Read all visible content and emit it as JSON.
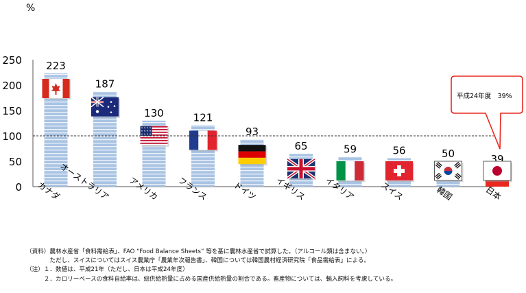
{
  "chart_data": {
    "type": "bar",
    "ylabel": "%",
    "ylim": [
      0,
      250
    ],
    "yticks": [
      0,
      50,
      100,
      150,
      200,
      250
    ],
    "reference_line": 100,
    "categories": [
      "カナダ",
      "オーストラリア",
      "アメリカ",
      "フランス",
      "ドイツ",
      "イギリス",
      "イタリア",
      "スイス",
      "韓国",
      "日本"
    ],
    "flags": [
      "canada",
      "australia",
      "usa",
      "france",
      "germany",
      "uk",
      "italy",
      "switzerland",
      "korea",
      "japan"
    ],
    "values": [
      223,
      187,
      130,
      121,
      93,
      65,
      59,
      56,
      50,
      39
    ],
    "value_labels": [
      "223",
      "187",
      "130",
      "121",
      "93",
      "65",
      "59",
      "56",
      "50",
      "39"
    ],
    "highlight_index": 9,
    "callout": "平成24年度　39%",
    "colors": {
      "bar": "#a9c3e3",
      "bar_stripe": "#ffffff",
      "highlight": "#e8281e",
      "callout_border": "#e8281e",
      "text": "#000000"
    }
  },
  "notes": [
    "（資料）農林水産省「食料需給表」、FAO “Food Balance Sheets” 等を基に農林水産省で試算した。（アルコール類は含まない。）",
    "　　　　ただし、スイスについてはスイス農業庁「農業年次報告書」、韓国については韓国農村経済研究院「食品需給表」による。",
    "（注）１．数値は、平成21年（ただし、日本は平成24年度）",
    "　　　２．カロリーベースの食料自給率は、総供給熱量に占める国産供給熱量の割合である。畜産物については、輸入飼料を考慮している。"
  ]
}
